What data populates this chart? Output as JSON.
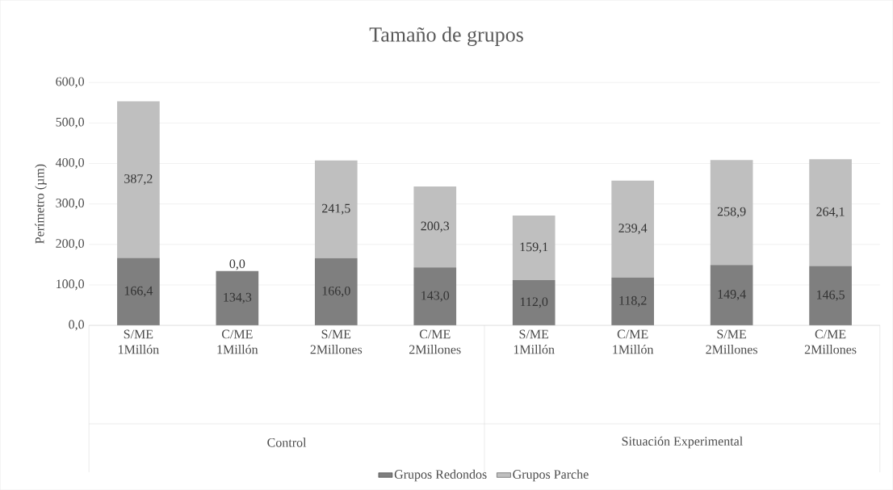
{
  "chart_data": {
    "type": "bar",
    "title": "Tamaño de grupos",
    "ylabel": "Perímetro (µm)",
    "categories": [
      "S/ME 1Millón",
      "C/ME 1Millón",
      "S/ME 2Millones",
      "C/ME 2Millones",
      "S/ME 1Millón",
      "C/ME 1Millón",
      "S/ME 2Millones",
      "C/ME 2Millones"
    ],
    "annotations": [
      "Control",
      "Situación Experimental"
    ],
    "stacked": true,
    "series": [
      {
        "name": "Grupos Redondos",
        "color": "#7f7f7f",
        "values": [
          166.4,
          134.3,
          166.0,
          143.0,
          112.0,
          118.2,
          149.4,
          146.5
        ],
        "value_labels": [
          "166,4",
          "134,3",
          "166,0",
          "143,0",
          "112,0",
          "118,2",
          "149,4",
          "146,5"
        ]
      },
      {
        "name": "Grupos Parche",
        "color": "#bfbfbf",
        "values": [
          387.2,
          0.0,
          241.5,
          200.3,
          159.1,
          239.4,
          258.9,
          264.1
        ],
        "value_labels": [
          "387,2",
          "0,0",
          "241,5",
          "200,3",
          "159,1",
          "239,4",
          "258,9",
          "264,1"
        ]
      }
    ],
    "ylim": [
      0,
      600
    ],
    "yticks": [
      {
        "value": 0,
        "label": "0,0"
      },
      {
        "value": 100,
        "label": "100,0"
      },
      {
        "value": 200,
        "label": "200,0"
      },
      {
        "value": 300,
        "label": "300,0"
      },
      {
        "value": 400,
        "label": "400,0"
      },
      {
        "value": 500,
        "label": "500,0"
      },
      {
        "value": 600,
        "label": "600,0"
      }
    ],
    "grid": "y",
    "legend": "bottom"
  }
}
